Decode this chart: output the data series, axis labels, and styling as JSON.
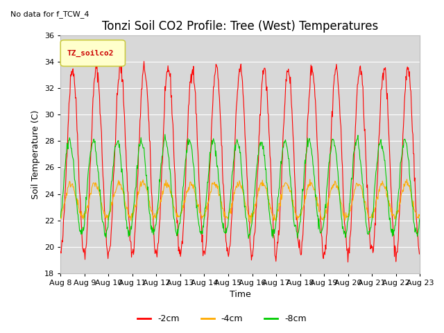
{
  "title": "Tonzi Soil CO2 Profile: Tree (West) Temperatures",
  "no_data_text": "No data for f_TCW_4",
  "ylabel": "Soil Temperature (C)",
  "xlabel": "Time",
  "ylim": [
    18,
    36
  ],
  "yticks": [
    18,
    20,
    22,
    24,
    26,
    28,
    30,
    32,
    34,
    36
  ],
  "x_tick_labels": [
    "Aug 8",
    "Aug 9",
    "Aug 10",
    "Aug 11",
    "Aug 12",
    "Aug 13",
    "Aug 14",
    "Aug 15",
    "Aug 16",
    "Aug 17",
    "Aug 18",
    "Aug 19",
    "Aug 20",
    "Aug 21",
    "Aug 22",
    "Aug 23"
  ],
  "legend_box_color": "#ffffcc",
  "legend_box_edge": "#cccc44",
  "legend_label": "TZ_soilco2",
  "series_labels": [
    "-2cm",
    "-4cm",
    "-8cm"
  ],
  "series_colors": [
    "#ff0000",
    "#ffaa00",
    "#00cc00"
  ],
  "fig_bg_color": "#ffffff",
  "plot_bg_color": "#d8d8d8",
  "grid_color": "#ffffff",
  "title_fontsize": 12,
  "axis_label_fontsize": 9,
  "tick_fontsize": 8
}
